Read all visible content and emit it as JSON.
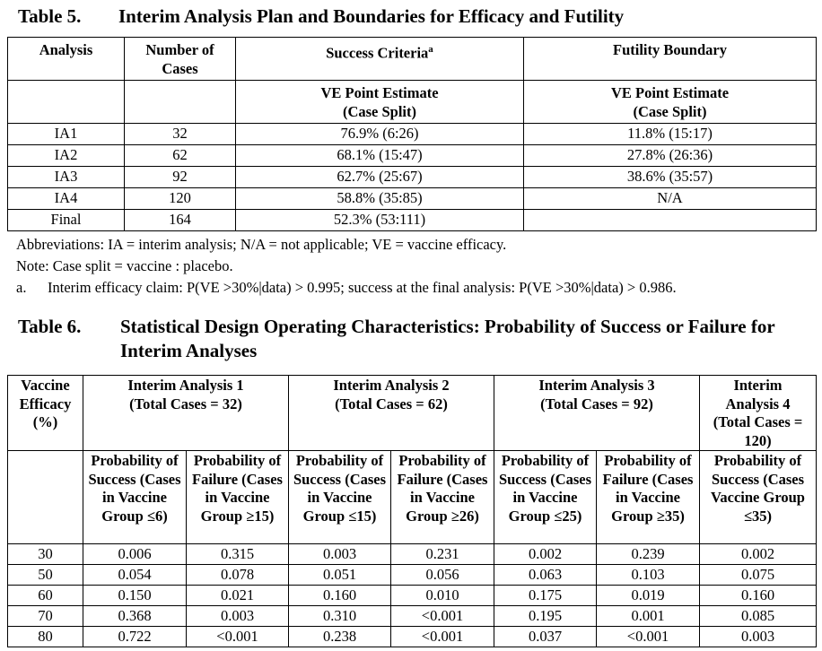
{
  "table5": {
    "number": "Table 5.",
    "title": "Interim Analysis Plan and Boundaries for Efficacy and Futility",
    "headers": {
      "analysis": "Analysis",
      "cases": "Number of Cases",
      "success": "Success Criteria",
      "success_sup": "a",
      "futility": "Futility Boundary",
      "success_sub": "VE Point Estimate (Case Split)",
      "futility_sub": "VE Point Estimate (Case Split)"
    },
    "rows": [
      {
        "analysis": "IA1",
        "cases": "32",
        "success": "76.9% (6:26)",
        "futility": "11.8% (15:17)"
      },
      {
        "analysis": "IA2",
        "cases": "62",
        "success": "68.1% (15:47)",
        "futility": "27.8% (26:36)"
      },
      {
        "analysis": "IA3",
        "cases": "92",
        "success": "62.7% (25:67)",
        "futility": "38.6% (35:57)"
      },
      {
        "analysis": "IA4",
        "cases": "120",
        "success": "58.8% (35:85)",
        "futility": "N/A"
      },
      {
        "analysis": "Final",
        "cases": "164",
        "success": "52.3% (53:111)",
        "futility": ""
      }
    ],
    "abbreviations": "Abbreviations: IA = interim analysis; N/A = not applicable; VE = vaccine efficacy.",
    "note": "Note: Case split = vaccine : placebo.",
    "footnote_label": "a.",
    "footnote_text": "Interim efficacy claim: P(VE >30%|data) > 0.995; success at the final analysis: P(VE >30%|data) > 0.986."
  },
  "table6": {
    "number": "Table 6.",
    "title": "Statistical Design Operating Characteristics: Probability of Success or Failure for Interim Analyses",
    "headers": {
      "ve": "Vaccine Efficacy (%)",
      "ia1": "Interim Analysis 1 (Total Cases = 32)",
      "ia2": "Interim Analysis 2 (Total Cases = 62)",
      "ia3": "Interim Analysis 3 (Total Cases = 92)",
      "ia4": "Interim Analysis 4 (Total Cases = 120)",
      "sub": [
        "Probability of Success (Cases in Vaccine Group ≤6)",
        "Probability of Failure (Cases in Vaccine Group ≥15)",
        "Probability of Success (Cases in Vaccine Group ≤15)",
        "Probability of Failure (Cases in Vaccine Group ≥26)",
        "Probability of Success (Cases in Vaccine Group ≤25)",
        "Probability of Failure (Cases in Vaccine Group ≥35)",
        "Probability of Success (Cases Vaccine Group ≤35)"
      ]
    },
    "rows": [
      [
        "30",
        "0.006",
        "0.315",
        "0.003",
        "0.231",
        "0.002",
        "0.239",
        "0.002"
      ],
      [
        "50",
        "0.054",
        "0.078",
        "0.051",
        "0.056",
        "0.063",
        "0.103",
        "0.075"
      ],
      [
        "60",
        "0.150",
        "0.021",
        "0.160",
        "0.010",
        "0.175",
        "0.019",
        "0.160"
      ],
      [
        "70",
        "0.368",
        "0.003",
        "0.310",
        "<0.001",
        "0.195",
        "0.001",
        "0.085"
      ],
      [
        "80",
        "0.722",
        "<0.001",
        "0.238",
        "<0.001",
        "0.037",
        "<0.001",
        "0.003"
      ]
    ]
  }
}
